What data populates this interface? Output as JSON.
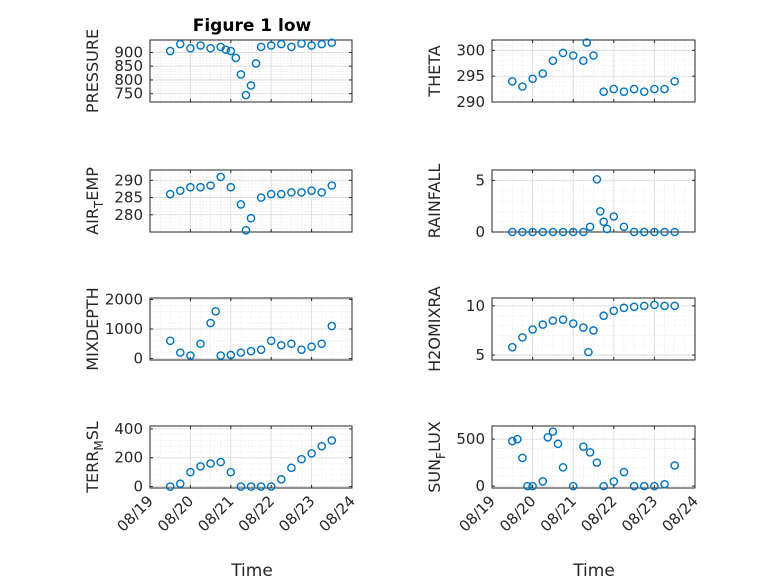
{
  "figure": {
    "title": "Figure 1 low",
    "marker_color": "#0072BD",
    "xlabel": "Time"
  },
  "chart_data": [
    {
      "type": "scatter",
      "marker": "circle",
      "grid": true,
      "minor_grid": true,
      "ylabel": "PRESSURE",
      "xlim": [
        "08/19",
        "08/24"
      ],
      "ylim": [
        720,
        945
      ],
      "yticks": [
        750,
        800,
        850,
        900
      ],
      "x": [
        "08/19 12:00",
        "08/19 18:00",
        "08/20 00:00",
        "08/20 06:00",
        "08/20 12:00",
        "08/20 18:00",
        "08/20 21:00",
        "08/21 00:00",
        "08/21 03:00",
        "08/21 06:00",
        "08/21 09:00",
        "08/21 12:00",
        "08/21 15:00",
        "08/21 18:00",
        "08/22 00:00",
        "08/22 06:00",
        "08/22 12:00",
        "08/22 18:00",
        "08/23 00:00",
        "08/23 06:00",
        "08/23 12:00"
      ],
      "y": [
        905,
        930,
        915,
        925,
        915,
        920,
        910,
        905,
        880,
        820,
        745,
        780,
        860,
        920,
        925,
        930,
        920,
        932,
        925,
        930,
        935
      ]
    },
    {
      "type": "scatter",
      "marker": "circle",
      "grid": true,
      "minor_grid": true,
      "ylabel": "THETA",
      "xlim": [
        "08/19",
        "08/24"
      ],
      "ylim": [
        290,
        302
      ],
      "yticks": [
        290,
        295,
        300
      ],
      "x": [
        "08/19 12:00",
        "08/19 18:00",
        "08/20 00:00",
        "08/20 06:00",
        "08/20 12:00",
        "08/20 18:00",
        "08/21 00:00",
        "08/21 06:00",
        "08/21 08:00",
        "08/21 12:00",
        "08/21 18:00",
        "08/22 00:00",
        "08/22 06:00",
        "08/22 12:00",
        "08/22 18:00",
        "08/23 00:00",
        "08/23 06:00",
        "08/23 12:00"
      ],
      "y": [
        294,
        293,
        294.5,
        295.5,
        298,
        299.5,
        299,
        298,
        301.5,
        299,
        292,
        292.5,
        292,
        292.5,
        292,
        292.5,
        292.5,
        294
      ]
    },
    {
      "type": "scatter",
      "marker": "circle",
      "grid": true,
      "minor_grid": true,
      "ylabel": "AIR_TEMP",
      "ylabel_parts": [
        "AIR",
        "T",
        "EMP"
      ],
      "xlim": [
        "08/19",
        "08/24"
      ],
      "ylim": [
        275,
        293
      ],
      "yticks": [
        280,
        285,
        290
      ],
      "x": [
        "08/19 12:00",
        "08/19 18:00",
        "08/20 00:00",
        "08/20 06:00",
        "08/20 12:00",
        "08/20 18:00",
        "08/21 00:00",
        "08/21 06:00",
        "08/21 09:00",
        "08/21 12:00",
        "08/21 18:00",
        "08/22 00:00",
        "08/22 06:00",
        "08/22 12:00",
        "08/22 18:00",
        "08/23 00:00",
        "08/23 06:00",
        "08/23 12:00"
      ],
      "y": [
        286,
        287,
        288,
        288,
        288.5,
        291,
        288,
        283,
        275.5,
        279,
        285,
        286,
        286,
        286.5,
        286.5,
        287,
        286.5,
        288.5
      ]
    },
    {
      "type": "scatter",
      "marker": "circle",
      "grid": true,
      "minor_grid": true,
      "ylabel": "RAINFALL",
      "xlim": [
        "08/19",
        "08/24"
      ],
      "ylim": [
        0,
        6
      ],
      "yticks": [
        0,
        5
      ],
      "x": [
        "08/19 12:00",
        "08/19 18:00",
        "08/20 00:00",
        "08/20 06:00",
        "08/20 12:00",
        "08/20 18:00",
        "08/21 00:00",
        "08/21 06:00",
        "08/21 10:00",
        "08/21 14:00",
        "08/21 16:00",
        "08/21 18:00",
        "08/21 20:00",
        "08/22 00:00",
        "08/22 06:00",
        "08/22 12:00",
        "08/22 18:00",
        "08/23 00:00",
        "08/23 06:00",
        "08/23 12:00"
      ],
      "y": [
        0,
        0,
        0,
        0,
        0,
        0,
        0,
        0,
        0.5,
        5.1,
        2,
        1,
        0.3,
        1.5,
        0.5,
        0,
        0,
        0,
        0,
        0
      ]
    },
    {
      "type": "scatter",
      "marker": "circle",
      "grid": true,
      "minor_grid": true,
      "ylabel": "MIXDEPTH",
      "xlim": [
        "08/19",
        "08/24"
      ],
      "ylim": [
        -50,
        2050
      ],
      "yticks": [
        0,
        1000,
        2000
      ],
      "x": [
        "08/19 12:00",
        "08/19 18:00",
        "08/20 00:00",
        "08/20 06:00",
        "08/20 12:00",
        "08/20 15:00",
        "08/20 18:00",
        "08/21 00:00",
        "08/21 06:00",
        "08/21 12:00",
        "08/21 18:00",
        "08/22 00:00",
        "08/22 06:00",
        "08/22 12:00",
        "08/22 18:00",
        "08/23 00:00",
        "08/23 06:00",
        "08/23 12:00"
      ],
      "y": [
        600,
        200,
        100,
        500,
        1200,
        1600,
        100,
        120,
        200,
        250,
        300,
        600,
        450,
        500,
        300,
        400,
        500,
        1100
      ]
    },
    {
      "type": "scatter",
      "marker": "circle",
      "grid": true,
      "minor_grid": true,
      "ylabel": "H2OMIXRA",
      "xlim": [
        "08/19",
        "08/24"
      ],
      "ylim": [
        4.5,
        10.8
      ],
      "yticks": [
        5,
        10
      ],
      "x": [
        "08/19 12:00",
        "08/19 18:00",
        "08/20 00:00",
        "08/20 06:00",
        "08/20 12:00",
        "08/20 18:00",
        "08/21 00:00",
        "08/21 06:00",
        "08/21 09:00",
        "08/21 12:00",
        "08/21 18:00",
        "08/22 00:00",
        "08/22 06:00",
        "08/22 12:00",
        "08/22 18:00",
        "08/23 00:00",
        "08/23 06:00",
        "08/23 12:00"
      ],
      "y": [
        5.8,
        6.8,
        7.6,
        8.1,
        8.5,
        8.6,
        8.2,
        7.8,
        5.3,
        7.5,
        9,
        9.5,
        9.8,
        9.9,
        10,
        10.1,
        10,
        10
      ]
    },
    {
      "type": "scatter",
      "marker": "circle",
      "grid": true,
      "minor_grid": true,
      "ylabel": "TERR_MSL",
      "ylabel_parts": [
        "TERR",
        "M",
        "SL"
      ],
      "xlim": [
        "08/19",
        "08/24"
      ],
      "ylim": [
        -10,
        420
      ],
      "yticks": [
        0,
        200,
        400
      ],
      "x": [
        "08/19 12:00",
        "08/19 18:00",
        "08/20 00:00",
        "08/20 06:00",
        "08/20 12:00",
        "08/20 18:00",
        "08/21 00:00",
        "08/21 06:00",
        "08/21 12:00",
        "08/21 18:00",
        "08/22 00:00",
        "08/22 06:00",
        "08/22 12:00",
        "08/22 18:00",
        "08/23 00:00",
        "08/23 06:00",
        "08/23 12:00"
      ],
      "y": [
        0,
        20,
        100,
        140,
        160,
        170,
        100,
        0,
        0,
        0,
        0,
        50,
        130,
        190,
        230,
        280,
        320
      ]
    },
    {
      "type": "scatter",
      "marker": "circle",
      "grid": true,
      "minor_grid": true,
      "ylabel": "SUN_FLUX",
      "ylabel_parts": [
        "SUN",
        "F",
        "LUX"
      ],
      "xlim": [
        "08/19",
        "08/24"
      ],
      "ylim": [
        -20,
        640
      ],
      "yticks": [
        0,
        500
      ],
      "x": [
        "08/19 12:00",
        "08/19 15:00",
        "08/19 18:00",
        "08/19 21:00",
        "08/20 00:00",
        "08/20 06:00",
        "08/20 09:00",
        "08/20 12:00",
        "08/20 15:00",
        "08/20 18:00",
        "08/21 00:00",
        "08/21 06:00",
        "08/21 10:00",
        "08/21 14:00",
        "08/21 18:00",
        "08/22 00:00",
        "08/22 06:00",
        "08/22 12:00",
        "08/22 18:00",
        "08/23 00:00",
        "08/23 06:00",
        "08/23 12:00"
      ],
      "y": [
        480,
        500,
        300,
        0,
        0,
        50,
        520,
        580,
        450,
        200,
        0,
        420,
        360,
        250,
        0,
        50,
        150,
        0,
        0,
        0,
        20,
        220
      ]
    }
  ],
  "xaxis": {
    "ticks": [
      "08/19",
      "08/20",
      "08/21",
      "08/22",
      "08/23",
      "08/24"
    ]
  }
}
